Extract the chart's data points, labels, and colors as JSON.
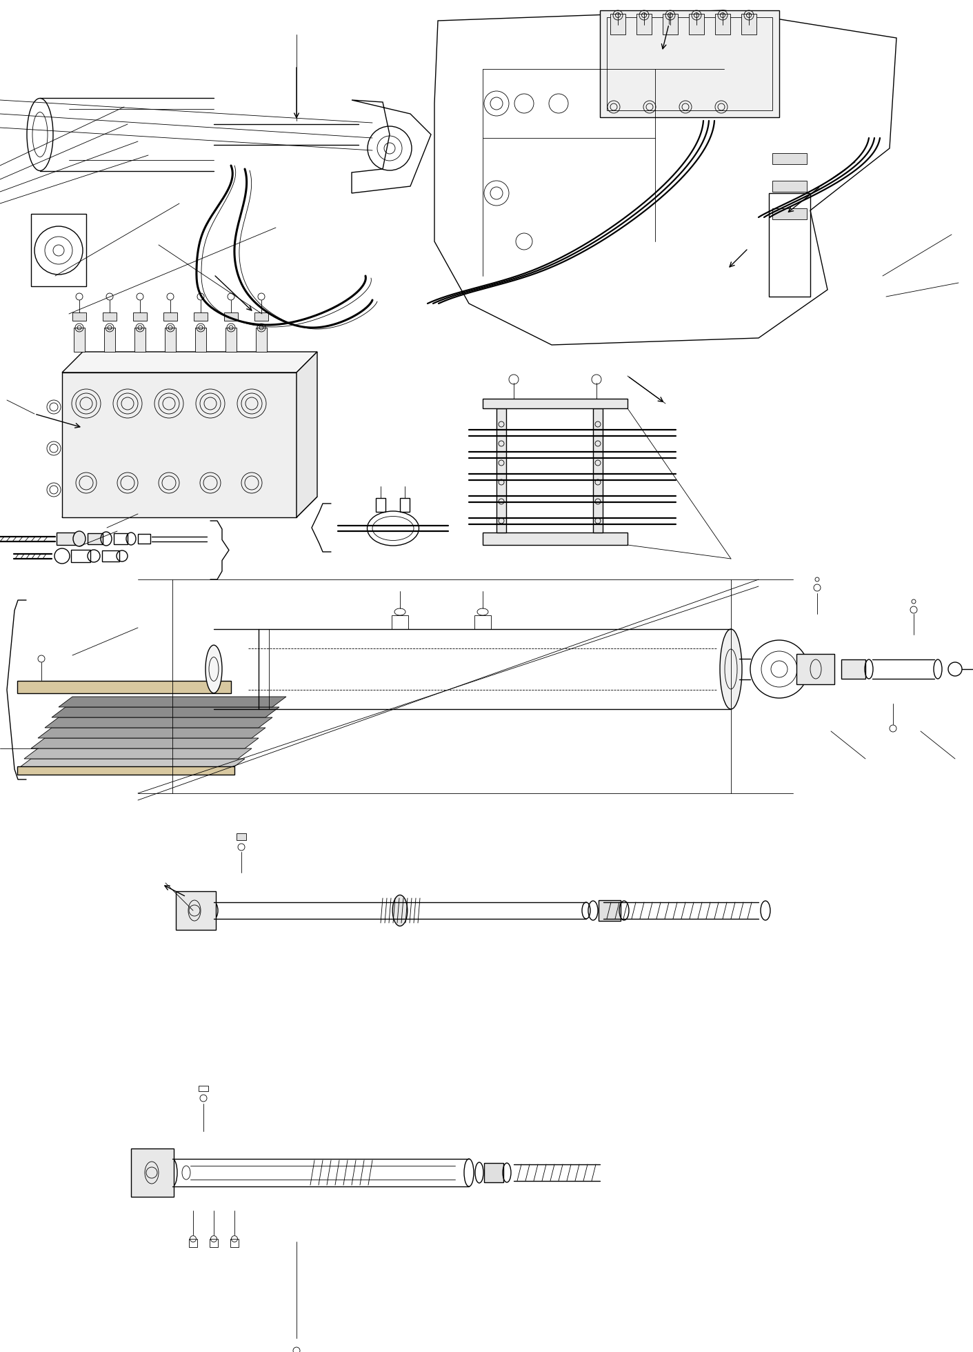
{
  "bg_color": "#ffffff",
  "line_color": "#000000",
  "fig_width": 14.11,
  "fig_height": 19.6,
  "dpi": 100,
  "lw_thin": 0.6,
  "lw_med": 1.0,
  "lw_thick": 1.6,
  "lw_vthick": 2.2
}
